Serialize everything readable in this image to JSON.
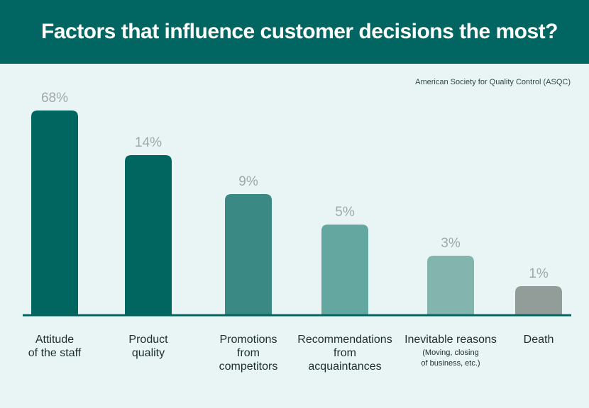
{
  "header": {
    "title": "Factors that influence customer decisions the most?"
  },
  "source": "American Society for Quality Control (ASQC)",
  "colors": {
    "header_bg": "#016661",
    "background": "#e8f5f4",
    "axis": "#016661",
    "value_label": "#a0a9a8",
    "bars": [
      "#01665f",
      "#01665f",
      "#3a8985",
      "#64a6a0",
      "#84b4ae",
      "#929d9a"
    ]
  },
  "chart_data": {
    "type": "bar",
    "title": "Factors that influence customer decisions the most?",
    "xlabel": "",
    "ylabel": "",
    "categories": [
      "Attitude of the staff",
      "Product quality",
      "Promotions from competitors",
      "Recommendations from acquaintances",
      "Inevitable reasons",
      "Death"
    ],
    "category_notes": [
      "",
      "",
      "",
      "",
      "(Moving, closing of business, etc.)",
      ""
    ],
    "values": [
      68,
      14,
      9,
      5,
      3,
      1
    ],
    "value_labels": [
      "68%",
      "14%",
      "9%",
      "5%",
      "3%",
      "1%"
    ],
    "unit": "%",
    "grid": false,
    "legend": "none"
  },
  "category_text": [
    {
      "line1": "Attitude",
      "line2": "of the staff",
      "line3": "",
      "sub1": "",
      "sub2": ""
    },
    {
      "line1": "Product",
      "line2": "quality",
      "line3": "",
      "sub1": "",
      "sub2": ""
    },
    {
      "line1": "Promotions",
      "line2": "from",
      "line3": "competitors",
      "sub1": "",
      "sub2": ""
    },
    {
      "line1": "Recommendations",
      "line2": "from",
      "line3": "acquaintances",
      "sub1": "",
      "sub2": ""
    },
    {
      "line1": "Inevitable reasons",
      "line2": "",
      "line3": "",
      "sub1": "(Moving, closing",
      "sub2": "of business, etc.)"
    },
    {
      "line1": "Death",
      "line2": "",
      "line3": "",
      "sub1": "",
      "sub2": ""
    }
  ]
}
